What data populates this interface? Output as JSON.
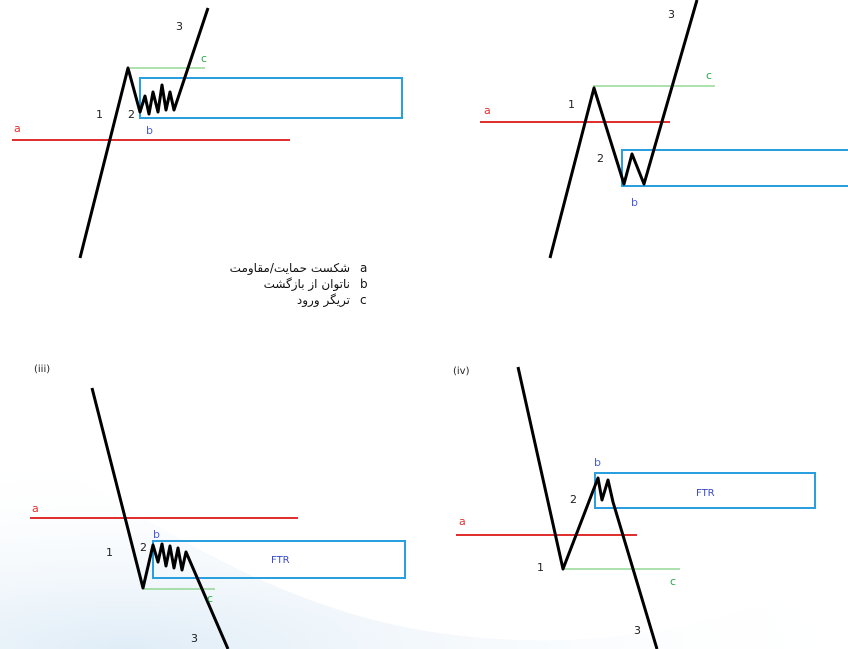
{
  "colors": {
    "level_line": "#e03030",
    "trigger_line": "#7ccf7c",
    "ftr_box": "#2a9fe0",
    "price": "#000000",
    "label_b": "#4a5ad8",
    "label_c": "#2fa84a"
  },
  "panels": [
    {
      "id": "panel-1",
      "labels": {
        "a": "a",
        "b": "b",
        "c": "c",
        "w1": "1",
        "w2": "2",
        "w3": "3"
      }
    },
    {
      "id": "panel-2",
      "labels": {
        "a": "a",
        "b": "b",
        "c": "c",
        "w1": "1",
        "w2": "2",
        "w3": "3"
      }
    },
    {
      "id": "panel-3",
      "roman": "(iii)",
      "ftr": "FTR",
      "labels": {
        "a": "a",
        "b": "b",
        "c": "c",
        "w1": "1",
        "w2": "2",
        "w3": "3"
      }
    },
    {
      "id": "panel-4",
      "roman": "(iv)",
      "ftr": "FTR",
      "labels": {
        "a": "a",
        "b": "b",
        "c": "c",
        "w1": "1",
        "w2": "2",
        "w3": "3"
      }
    }
  ],
  "legend": [
    {
      "letter": "a",
      "text": "شکست حمایت/مقاومت"
    },
    {
      "letter": "b",
      "text": "ناتوان از بازگشت"
    },
    {
      "letter": "c",
      "text": "تریگر ورود"
    }
  ]
}
